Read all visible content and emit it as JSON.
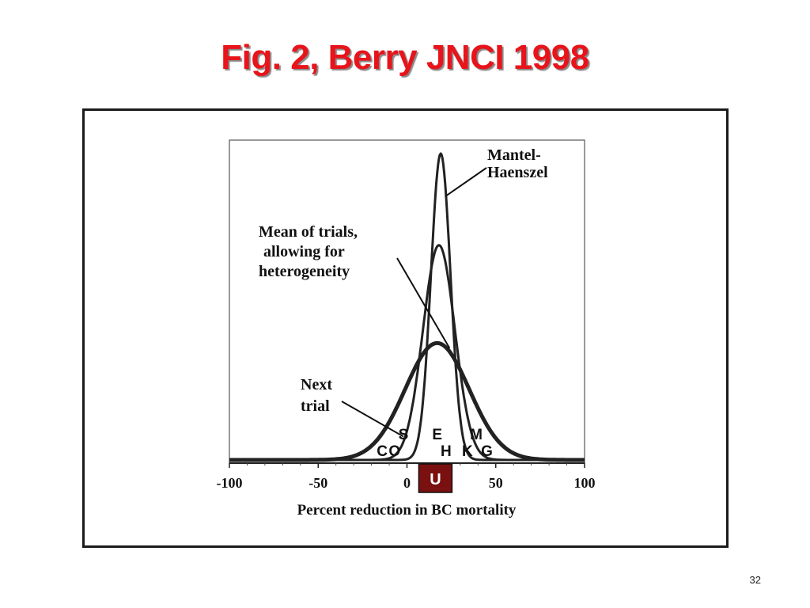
{
  "slide": {
    "title": "Fig. 2, Berry JNCI 1998",
    "page_number": "32"
  },
  "colors": {
    "title": "#e8141b",
    "curve": "#222222",
    "marker_fill": "#7a1010"
  },
  "chart_data": {
    "type": "line",
    "title": "",
    "xlabel": "Percent reduction in BC mortality",
    "ylabel": "",
    "xlim": [
      -100,
      100
    ],
    "ylim": [
      0,
      1
    ],
    "x_ticks": [
      "-100",
      "-50",
      "0",
      "50",
      "100"
    ],
    "x_tick_values": [
      -100,
      -50,
      0,
      50,
      100
    ],
    "series": [
      {
        "name": "Mantel-Haenszel",
        "mean": 19,
        "sd": 5.5,
        "peak": 0.97,
        "stroke": 3
      },
      {
        "name": "Mean of trials, allowing for heterogeneity",
        "mean": 18,
        "sd": 9,
        "peak": 0.68,
        "stroke": 3
      },
      {
        "name": "Next trial",
        "mean": 17,
        "sd": 18,
        "peak": 0.37,
        "stroke": 5
      }
    ],
    "trial_labels": [
      {
        "label": "S",
        "x": -2,
        "row": 1
      },
      {
        "label": "C",
        "x": -14,
        "row": 2
      },
      {
        "label": "O",
        "x": -7,
        "row": 2
      },
      {
        "label": "E",
        "x": 17,
        "row": 1
      },
      {
        "label": "H",
        "x": 22,
        "row": 2
      },
      {
        "label": "M",
        "x": 39,
        "row": 1
      },
      {
        "label": "K",
        "x": 34,
        "row": 2
      },
      {
        "label": "G",
        "x": 45,
        "row": 2
      }
    ],
    "annotations": [
      {
        "id": "mh",
        "lines": [
          "Mantel-",
          "Haenszel"
        ],
        "series_index": 0
      },
      {
        "id": "mean",
        "lines": [
          "Mean of trials,",
          "allowing for",
          "heterogeneity"
        ],
        "series_index": 1
      },
      {
        "id": "next",
        "lines": [
          "Next",
          "trial"
        ],
        "series_index": 2
      }
    ],
    "marker": {
      "label": "U",
      "x": 16
    }
  }
}
